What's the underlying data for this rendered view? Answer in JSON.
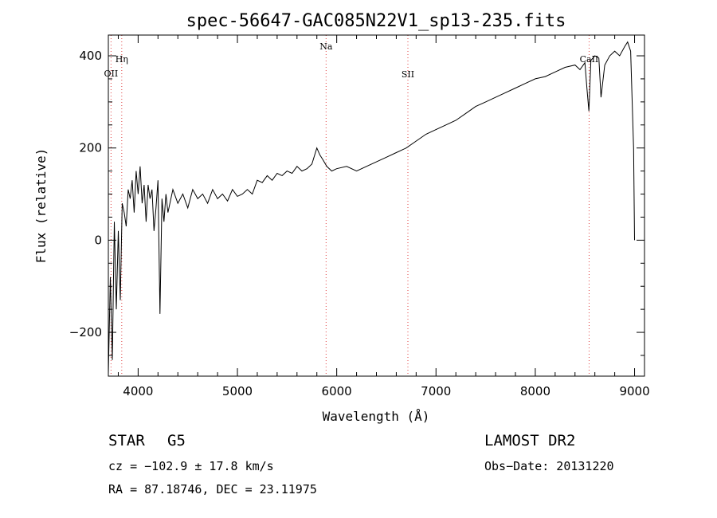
{
  "chart_data": {
    "type": "line",
    "title": "spec-56647-GAC085N22V1_sp13-235.fits",
    "xlabel": "Wavelength (Å)",
    "ylabel": "Flux (relative)",
    "xlim": [
      3700,
      9100
    ],
    "ylim": [
      -295,
      445
    ],
    "x_ticks": [
      4000,
      5000,
      6000,
      7000,
      8000,
      9000
    ],
    "y_ticks": [
      -200,
      0,
      200,
      400
    ],
    "grid": false,
    "line_color": "#000000",
    "marker_color": "#e04040",
    "spectral_lines": [
      {
        "name": "OII",
        "wavelength": 3727
      },
      {
        "name": "Hη",
        "wavelength": 3835
      },
      {
        "name": "Na",
        "wavelength": 5893
      },
      {
        "name": "SII",
        "wavelength": 6717
      },
      {
        "name": "CaII",
        "wavelength": 8542
      }
    ],
    "series": [
      {
        "x": [
          3700,
          3720,
          3740,
          3760,
          3780,
          3800,
          3820,
          3840,
          3860,
          3880,
          3900,
          3920,
          3940,
          3960,
          3980,
          4000,
          4020,
          4040,
          4060,
          4080,
          4100,
          4120,
          4140,
          4160,
          4180,
          4200,
          4220,
          4240,
          4260,
          4280,
          4300,
          4350,
          4400,
          4450,
          4500,
          4550,
          4600,
          4650,
          4700,
          4750,
          4800,
          4850,
          4900,
          4950,
          5000,
          5050,
          5100,
          5150,
          5200,
          5250,
          5300,
          5350,
          5400,
          5450,
          5500,
          5550,
          5600,
          5650,
          5700,
          5750,
          5800,
          5830,
          5860,
          5900,
          5950,
          6000,
          6100,
          6200,
          6300,
          6400,
          6500,
          6600,
          6700,
          6800,
          6900,
          7000,
          7100,
          7200,
          7300,
          7400,
          7500,
          7600,
          7700,
          7800,
          7900,
          8000,
          8100,
          8200,
          8300,
          8400,
          8450,
          8500,
          8520,
          8540,
          8560,
          8600,
          8640,
          8662,
          8700,
          8750,
          8800,
          8850,
          8900,
          8930,
          8960,
          8990,
          9000
        ],
        "y": [
          -290,
          -80,
          -260,
          40,
          -150,
          20,
          -130,
          80,
          60,
          30,
          110,
          90,
          130,
          60,
          150,
          100,
          160,
          80,
          120,
          40,
          120,
          90,
          110,
          20,
          70,
          130,
          -160,
          90,
          40,
          100,
          60,
          110,
          80,
          100,
          70,
          110,
          90,
          100,
          80,
          110,
          90,
          100,
          85,
          110,
          95,
          100,
          110,
          100,
          130,
          125,
          140,
          130,
          145,
          140,
          150,
          145,
          160,
          150,
          155,
          165,
          200,
          185,
          175,
          160,
          150,
          155,
          160,
          150,
          160,
          170,
          180,
          190,
          200,
          215,
          230,
          240,
          250,
          260,
          275,
          290,
          300,
          310,
          320,
          330,
          340,
          350,
          355,
          365,
          375,
          380,
          370,
          385,
          330,
          280,
          390,
          400,
          395,
          310,
          380,
          400,
          410,
          400,
          420,
          430,
          410,
          200,
          0
        ]
      }
    ]
  },
  "info": {
    "object_class": "STAR",
    "subclass": "G5",
    "survey": "LAMOST DR2",
    "cz": "cz = −102.9 ± 17.8 km/s",
    "obs_date": "Obs−Date: 20131220",
    "coords": "RA =  87.18746, DEC =  23.11975"
  }
}
